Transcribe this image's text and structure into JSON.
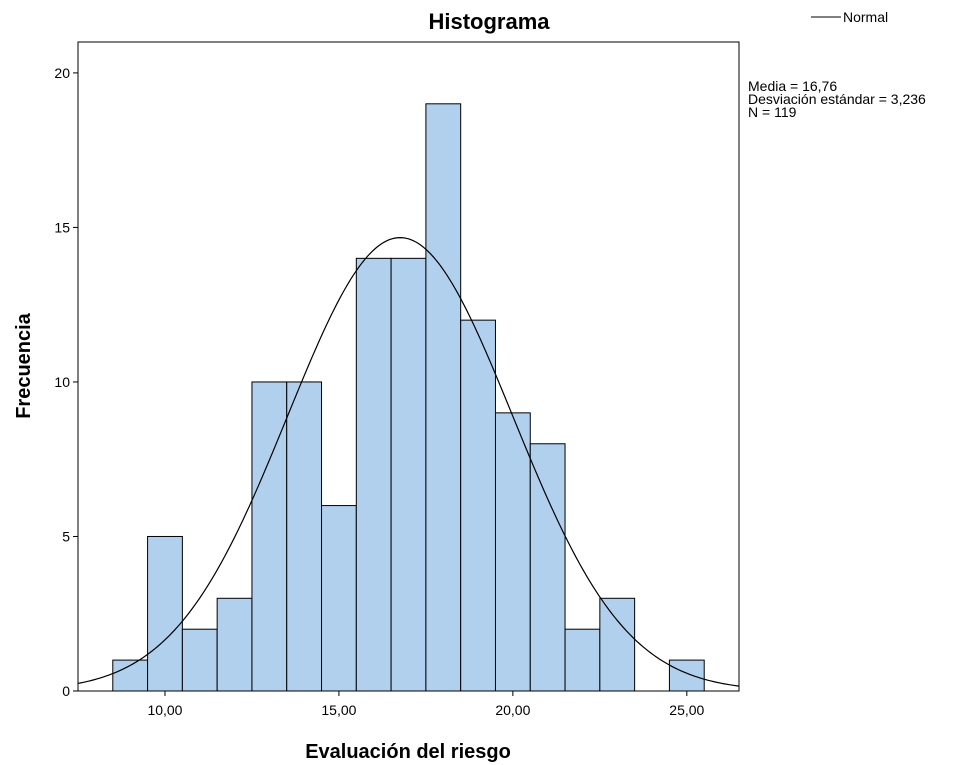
{
  "chart_data": {
    "type": "bar",
    "title": "Histograma",
    "xlabel": "Evaluación del riesgo",
    "ylabel": "Frecuencia",
    "xlim": [
      7.5,
      26.5
    ],
    "ylim": [
      0,
      21
    ],
    "x_ticks": [
      10,
      15,
      20,
      25
    ],
    "x_tick_labels": [
      "10,00",
      "15,00",
      "20,00",
      "25,00"
    ],
    "y_ticks": [
      0,
      5,
      10,
      15,
      20
    ],
    "y_tick_labels": [
      "0",
      "5",
      "10",
      "15",
      "20"
    ],
    "bin_width": 1,
    "bin_centers": [
      9,
      10,
      11,
      12,
      13,
      14,
      15,
      16,
      17,
      18,
      19,
      20,
      21,
      22,
      23,
      24,
      25
    ],
    "values": [
      1,
      5,
      2,
      3,
      10,
      10,
      6,
      14,
      14,
      19,
      12,
      9,
      8,
      2,
      3,
      0,
      1
    ],
    "bar_color": "#b0d0ee",
    "edge_color": "#000000",
    "normal_curve": {
      "mean": 16.76,
      "sd": 3.236,
      "n": 119
    },
    "legend": {
      "entries": [
        "Normal"
      ],
      "position": "top-right"
    },
    "stats": [
      "Media = 16,76",
      "Desviación estándar = 3,236",
      "N = 119"
    ],
    "grid": false
  }
}
